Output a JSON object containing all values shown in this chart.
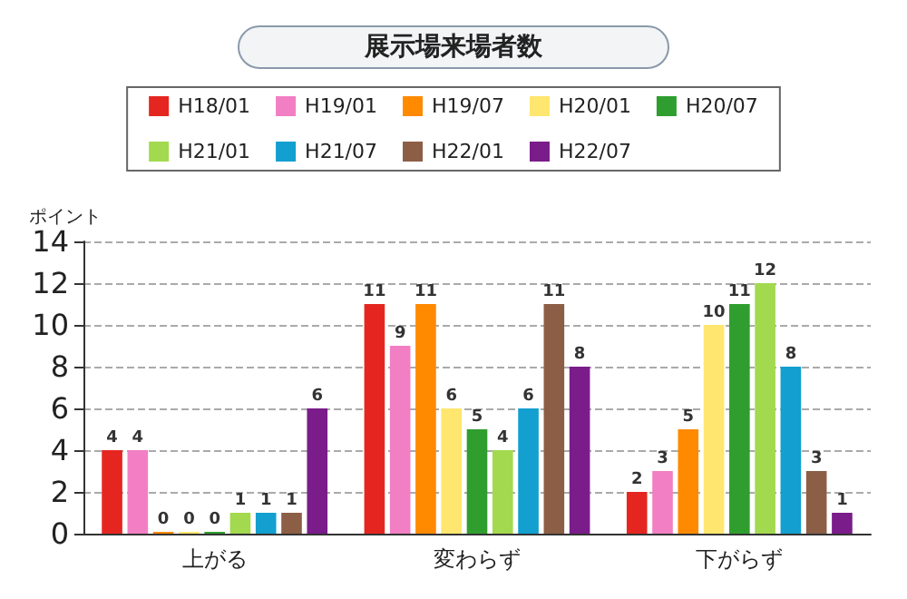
{
  "chart_data": {
    "type": "bar",
    "title": "展示場来場者数",
    "ylabel": "ポイント",
    "categories": [
      "上がる",
      "変わらず",
      "下がらず"
    ],
    "series": [
      {
        "name": "H18/01",
        "color": "#e52620",
        "values": [
          4,
          11,
          2
        ]
      },
      {
        "name": "H19/01",
        "color": "#f27fc3",
        "values": [
          4,
          9,
          3
        ]
      },
      {
        "name": "H19/07",
        "color": "#ff8a00",
        "values": [
          0,
          11,
          5
        ]
      },
      {
        "name": "H20/01",
        "color": "#ffe66e",
        "values": [
          0,
          6,
          10
        ]
      },
      {
        "name": "H20/07",
        "color": "#2f9e2f",
        "values": [
          0,
          5,
          11
        ]
      },
      {
        "name": "H21/01",
        "color": "#a3d94e",
        "values": [
          1,
          4,
          12
        ]
      },
      {
        "name": "H21/07",
        "color": "#139fcf",
        "values": [
          1,
          6,
          8
        ]
      },
      {
        "name": "H22/01",
        "color": "#8c5e45",
        "values": [
          1,
          11,
          3
        ]
      },
      {
        "name": "H22/07",
        "color": "#7a1c8a",
        "values": [
          6,
          8,
          1
        ]
      }
    ],
    "ylim": [
      0,
      14
    ],
    "yticks": [
      0,
      2,
      4,
      6,
      8,
      10,
      12,
      14
    ],
    "grid": "y",
    "legend": "top",
    "data_labels": true
  }
}
